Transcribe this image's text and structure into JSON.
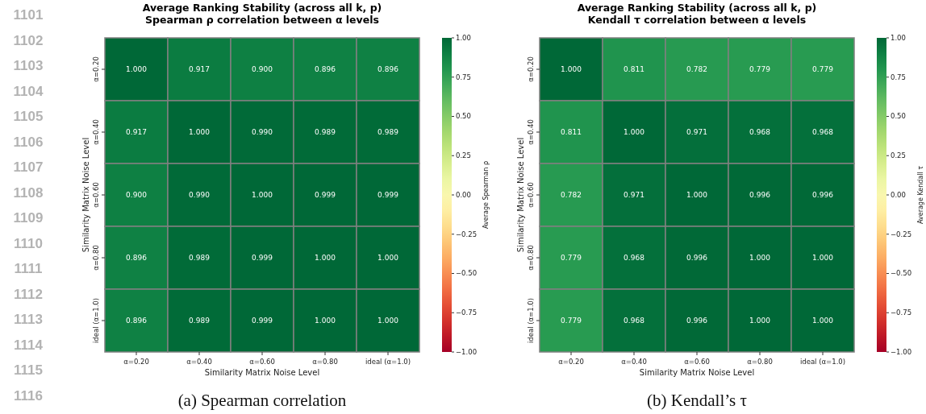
{
  "chart_data": [
    {
      "type": "heatmap",
      "title": "Average Ranking Stability (across all k, p)",
      "subtitle": "Spearman ρ correlation between α levels",
      "xlabel": "Similarity Matrix Noise Level",
      "ylabel": "Similarity Matrix Noise Level",
      "clabel": "Average Spearman ρ",
      "categories": [
        "α=0.20",
        "α=0.40",
        "α=0.60",
        "α=0.80",
        "ideal (α=1.0)"
      ],
      "y_categories": [
        "α=0.20",
        "α=0.40",
        "α=0.60",
        "α=0.80",
        "ideal (α=1.0)"
      ],
      "cells": [
        [
          1.0,
          0.917,
          0.9,
          0.896,
          0.896
        ],
        [
          0.917,
          1.0,
          0.99,
          0.989,
          0.989
        ],
        [
          0.9,
          0.99,
          1.0,
          0.999,
          0.999
        ],
        [
          0.896,
          0.989,
          0.999,
          1.0,
          1.0
        ],
        [
          0.896,
          0.989,
          0.999,
          1.0,
          1.0
        ]
      ],
      "cell_labels": [
        [
          "1.000",
          "0.917",
          "0.900",
          "0.896",
          "0.896"
        ],
        [
          "0.917",
          "1.000",
          "0.990",
          "0.989",
          "0.989"
        ],
        [
          "0.900",
          "0.990",
          "1.000",
          "0.999",
          "0.999"
        ],
        [
          "0.896",
          "0.989",
          "0.999",
          "1.000",
          "1.000"
        ],
        [
          "0.896",
          "0.989",
          "0.999",
          "1.000",
          "1.000"
        ]
      ],
      "clim": [
        -1,
        1
      ],
      "cticks": [
        {
          "value": -1,
          "label": "−1.00"
        },
        {
          "value": -0.75,
          "label": "−0.75"
        },
        {
          "value": -0.5,
          "label": "−0.50"
        },
        {
          "value": -0.25,
          "label": "−0.25"
        },
        {
          "value": 0,
          "label": "0.00"
        },
        {
          "value": 0.25,
          "label": "0.25"
        },
        {
          "value": 0.5,
          "label": "0.50"
        },
        {
          "value": 0.75,
          "label": "0.75"
        },
        {
          "value": 1,
          "label": "1.00"
        }
      ],
      "annotations": [
        "(a) Spearman correlation",
        "1101",
        "1102",
        "1103",
        "1104",
        "1105",
        "1106",
        "1107",
        "1108",
        "1109",
        "1110",
        "1111",
        "1112",
        "1113",
        "1114",
        "1115",
        "1116"
      ]
    },
    {
      "type": "heatmap",
      "title": "Average Ranking Stability (across all k, p)",
      "subtitle": "Kendall τ correlation between α levels",
      "xlabel": "Similarity Matrix Noise Level",
      "ylabel": "Similarity Matrix Noise Level",
      "clabel": "Average Kendall τ",
      "categories": [
        "α=0.20",
        "α=0.40",
        "α=0.60",
        "α=0.80",
        "ideal (α=1.0)"
      ],
      "y_categories": [
        "α=0.20",
        "α=0.40",
        "α=0.60",
        "α=0.80",
        "ideal (α=1.0)"
      ],
      "cells": [
        [
          1.0,
          0.811,
          0.782,
          0.779,
          0.779
        ],
        [
          0.811,
          1.0,
          0.971,
          0.968,
          0.968
        ],
        [
          0.782,
          0.971,
          1.0,
          0.996,
          0.996
        ],
        [
          0.779,
          0.968,
          0.996,
          1.0,
          1.0
        ],
        [
          0.779,
          0.968,
          0.996,
          1.0,
          1.0
        ]
      ],
      "cell_labels": [
        [
          "1.000",
          "0.811",
          "0.782",
          "0.779",
          "0.779"
        ],
        [
          "0.811",
          "1.000",
          "0.971",
          "0.968",
          "0.968"
        ],
        [
          "0.782",
          "0.971",
          "1.000",
          "0.996",
          "0.996"
        ],
        [
          "0.779",
          "0.968",
          "0.996",
          "1.000",
          "1.000"
        ],
        [
          "0.779",
          "0.968",
          "0.996",
          "1.000",
          "1.000"
        ]
      ],
      "clim": [
        -1,
        1
      ],
      "cticks": [
        {
          "value": -1,
          "label": "−1.00"
        },
        {
          "value": -0.75,
          "label": "−0.75"
        },
        {
          "value": -0.5,
          "label": "−0.50"
        },
        {
          "value": -0.25,
          "label": "−0.25"
        },
        {
          "value": 0,
          "label": "0.00"
        },
        {
          "value": 0.25,
          "label": "0.25"
        },
        {
          "value": 0.5,
          "label": "0.50"
        },
        {
          "value": 0.75,
          "label": "0.75"
        },
        {
          "value": 1,
          "label": "1.00"
        }
      ],
      "annotations": [
        "(b) Kendall’s τ"
      ]
    }
  ]
}
